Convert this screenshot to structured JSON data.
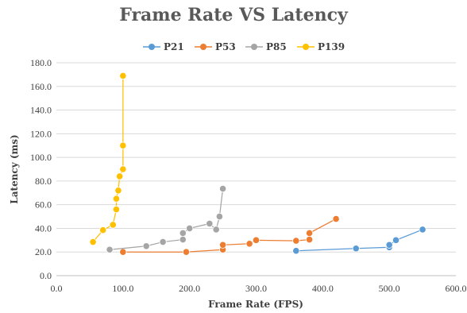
{
  "chart_data": {
    "type": "scatter",
    "title": "Frame Rate VS Latency",
    "xlabel": "Frame Rate (FPS)",
    "ylabel": "Latency (ms)",
    "xlim": [
      0,
      600
    ],
    "ylim": [
      0,
      180
    ],
    "xticks": [
      "0.0",
      "100.0",
      "200.0",
      "300.0",
      "400.0",
      "500.0",
      "600.0"
    ],
    "yticks": [
      "0.0",
      "20.0",
      "40.0",
      "60.0",
      "80.0",
      "100.0",
      "120.0",
      "140.0",
      "160.0",
      "180.0"
    ],
    "legend": "top",
    "grid": "horizontal",
    "series": [
      {
        "name": "P21",
        "color": "#5b9bd5",
        "points": [
          [
            360,
            21
          ],
          [
            450,
            23
          ],
          [
            500,
            24
          ],
          [
            500,
            26
          ],
          [
            510,
            30
          ],
          [
            550,
            39
          ]
        ]
      },
      {
        "name": "P53",
        "color": "#ed7d31",
        "points": [
          [
            100,
            20
          ],
          [
            195,
            20
          ],
          [
            250,
            22
          ],
          [
            250,
            26
          ],
          [
            290,
            27
          ],
          [
            300,
            30
          ],
          [
            360,
            29.5
          ],
          [
            380,
            30.5
          ],
          [
            380,
            36
          ],
          [
            420,
            48
          ]
        ]
      },
      {
        "name": "P85",
        "color": "#a5a5a5",
        "points": [
          [
            80,
            22
          ],
          [
            135,
            25
          ],
          [
            160,
            28.5
          ],
          [
            190,
            30.5
          ],
          [
            190,
            36
          ],
          [
            200,
            40
          ],
          [
            230,
            44
          ],
          [
            240,
            39
          ],
          [
            245,
            50
          ],
          [
            250,
            73.5
          ]
        ]
      },
      {
        "name": "P139",
        "color": "#ffc000",
        "points": [
          [
            55,
            28.5
          ],
          [
            70,
            38.5
          ],
          [
            85,
            43
          ],
          [
            90,
            56
          ],
          [
            90,
            65
          ],
          [
            93,
            72
          ],
          [
            95,
            84
          ],
          [
            100,
            90
          ],
          [
            100,
            110
          ],
          [
            100,
            169
          ]
        ]
      }
    ]
  }
}
